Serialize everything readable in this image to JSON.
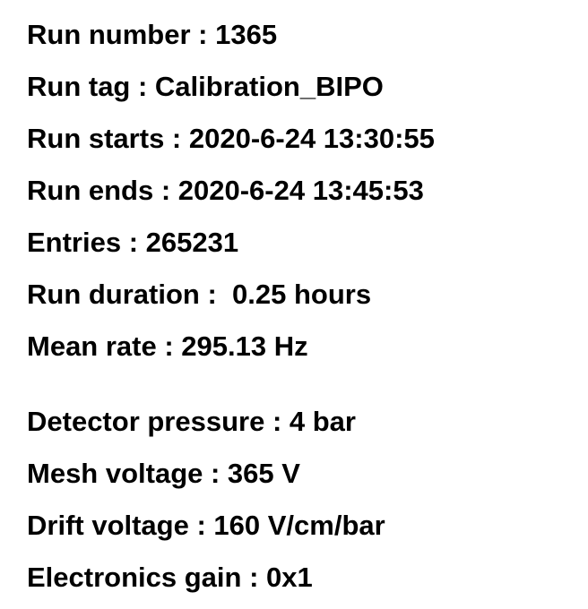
{
  "run_info": [
    "Run number : 1365",
    "Run tag : Calibration_BIPO",
    "Run starts : 2020-6-24 13:30:55",
    "Run ends : 2020-6-24 13:45:53",
    "Entries : 265231",
    "Run duration :  0.25 hours",
    "Mean rate : 295.13 Hz"
  ],
  "detector_info": [
    "Detector pressure : 4 bar",
    "Mesh voltage : 365 V",
    "Drift voltage : 160 V/cm/bar",
    "Electronics gain : 0x1"
  ]
}
